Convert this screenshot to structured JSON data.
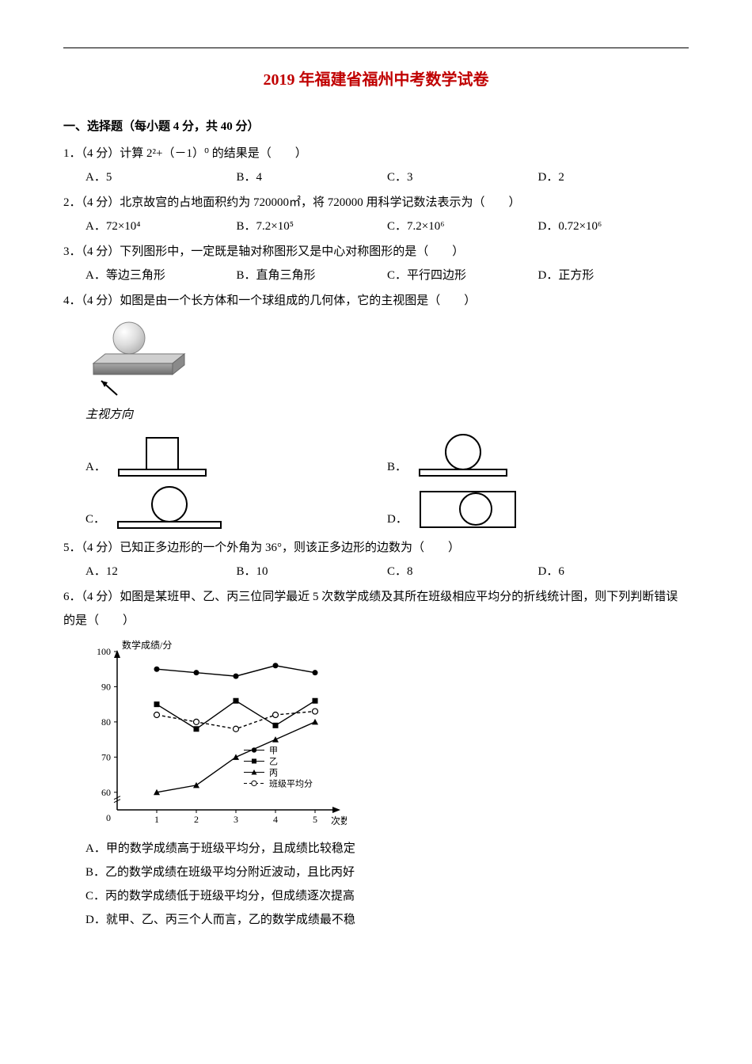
{
  "title": "2019 年福建省福州中考数学试卷",
  "section1": "一、选择题（每小题 4 分，共 40 分）",
  "q1": {
    "stem": "1．（4 分）计算 2²+（－1）⁰ 的结果是（　　）",
    "A": "A．5",
    "B": "B．4",
    "C": "C．3",
    "D": "D．2"
  },
  "q2": {
    "stem": "2．（4 分）北京故宫的占地面积约为 720000㎡，将 720000 用科学记数法表示为（　　）",
    "A": "A．72×10⁴",
    "B": "B．7.2×10⁵",
    "C": "C．7.2×10⁶",
    "D": "D．0.72×10⁶"
  },
  "q3": {
    "stem": "3．（4 分）下列图形中，一定既是轴对称图形又是中心对称图形的是（　　）",
    "A": "A．等边三角形",
    "B": "B．直角三角形",
    "C": "C．平行四边形",
    "D": "D．正方形"
  },
  "q4": {
    "stem": "4．（4 分）如图是由一个长方体和一个球组成的几何体，它的主视图是（　　）",
    "viewdir": "主视方向",
    "A": "A．",
    "B": "B．",
    "C": "C．",
    "D": "D．"
  },
  "q5": {
    "stem": "5．（4 分）已知正多边形的一个外角为 36°，则该正多边形的边数为（　　）",
    "A": "A．12",
    "B": "B．10",
    "C": "C．8",
    "D": "D．6"
  },
  "q6": {
    "stem": "6．（4 分）如图是某班甲、乙、丙三位同学最近 5 次数学成绩及其所在班级相应平均分的折线统计图，则下列判断错误的是（　　）",
    "chart": {
      "ylabel": "数学成绩/分",
      "xlabel": "次数",
      "ylim": [
        55,
        100
      ],
      "xticks": [
        0,
        1,
        2,
        3,
        4,
        5
      ],
      "yticks": [
        60,
        70,
        80,
        90,
        100
      ],
      "grid_color": "#000000",
      "colors": {
        "jia": "#000000",
        "yi": "#000000",
        "bing": "#000000",
        "avg": "#000000"
      },
      "series": {
        "jia": {
          "label": "甲",
          "marker": "circle-filled",
          "pts": [
            [
              1,
              95
            ],
            [
              2,
              94
            ],
            [
              3,
              93
            ],
            [
              4,
              96
            ],
            [
              5,
              94
            ]
          ]
        },
        "yi": {
          "label": "乙",
          "marker": "square-filled",
          "pts": [
            [
              1,
              85
            ],
            [
              2,
              78
            ],
            [
              3,
              86
            ],
            [
              4,
              79
            ],
            [
              5,
              86
            ]
          ]
        },
        "bing": {
          "label": "丙",
          "marker": "triangle-filled",
          "pts": [
            [
              1,
              60
            ],
            [
              2,
              62
            ],
            [
              3,
              70
            ],
            [
              4,
              75
            ],
            [
              5,
              80
            ]
          ]
        },
        "avg": {
          "label": "班级平均分",
          "marker": "circle-open",
          "pts": [
            [
              1,
              82
            ],
            [
              2,
              80
            ],
            [
              3,
              78
            ],
            [
              4,
              82
            ],
            [
              5,
              83
            ]
          ]
        }
      }
    },
    "A": "A．甲的数学成绩高于班级平均分，且成绩比较稳定",
    "B": "B．乙的数学成绩在班级平均分附近波动，且比丙好",
    "C": "C．丙的数学成绩低于班级平均分，但成绩逐次提高",
    "D": "D．就甲、乙、丙三个人而言，乙的数学成绩最不稳"
  }
}
